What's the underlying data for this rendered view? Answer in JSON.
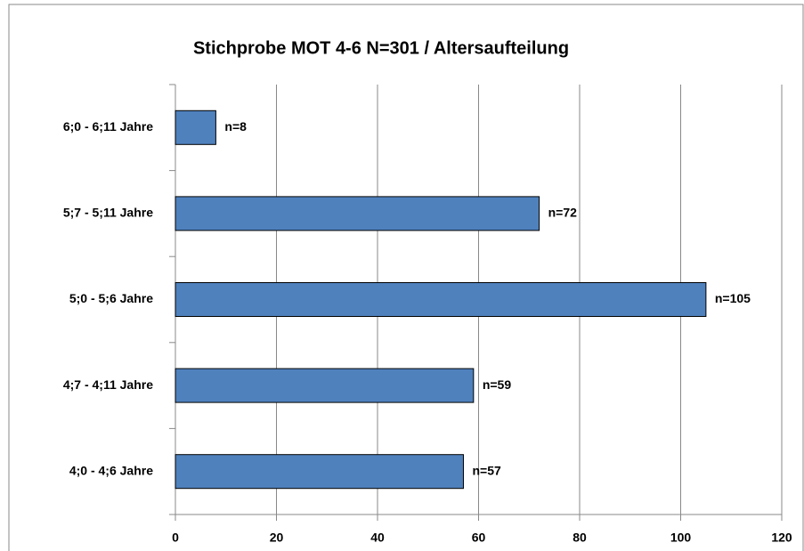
{
  "chart_data": {
    "type": "bar",
    "orientation": "horizontal",
    "title": "Stichprobe MOT 4-6 N=301 / Altersaufteilung",
    "categories": [
      "6;0 - 6;11 Jahre",
      "5;7 - 5;11 Jahre",
      "5;0 - 5;6 Jahre",
      "4;7 - 4;11 Jahre",
      "4;0 - 4;6 Jahre"
    ],
    "values": [
      8,
      72,
      105,
      59,
      57
    ],
    "value_labels": [
      "n=8",
      "n=72",
      "n=105",
      "n=59",
      "n=57"
    ],
    "color": "#4f81bd",
    "xlim": [
      0,
      120
    ],
    "xticks": [
      0,
      20,
      40,
      60,
      80,
      100,
      120
    ],
    "grid": true
  }
}
